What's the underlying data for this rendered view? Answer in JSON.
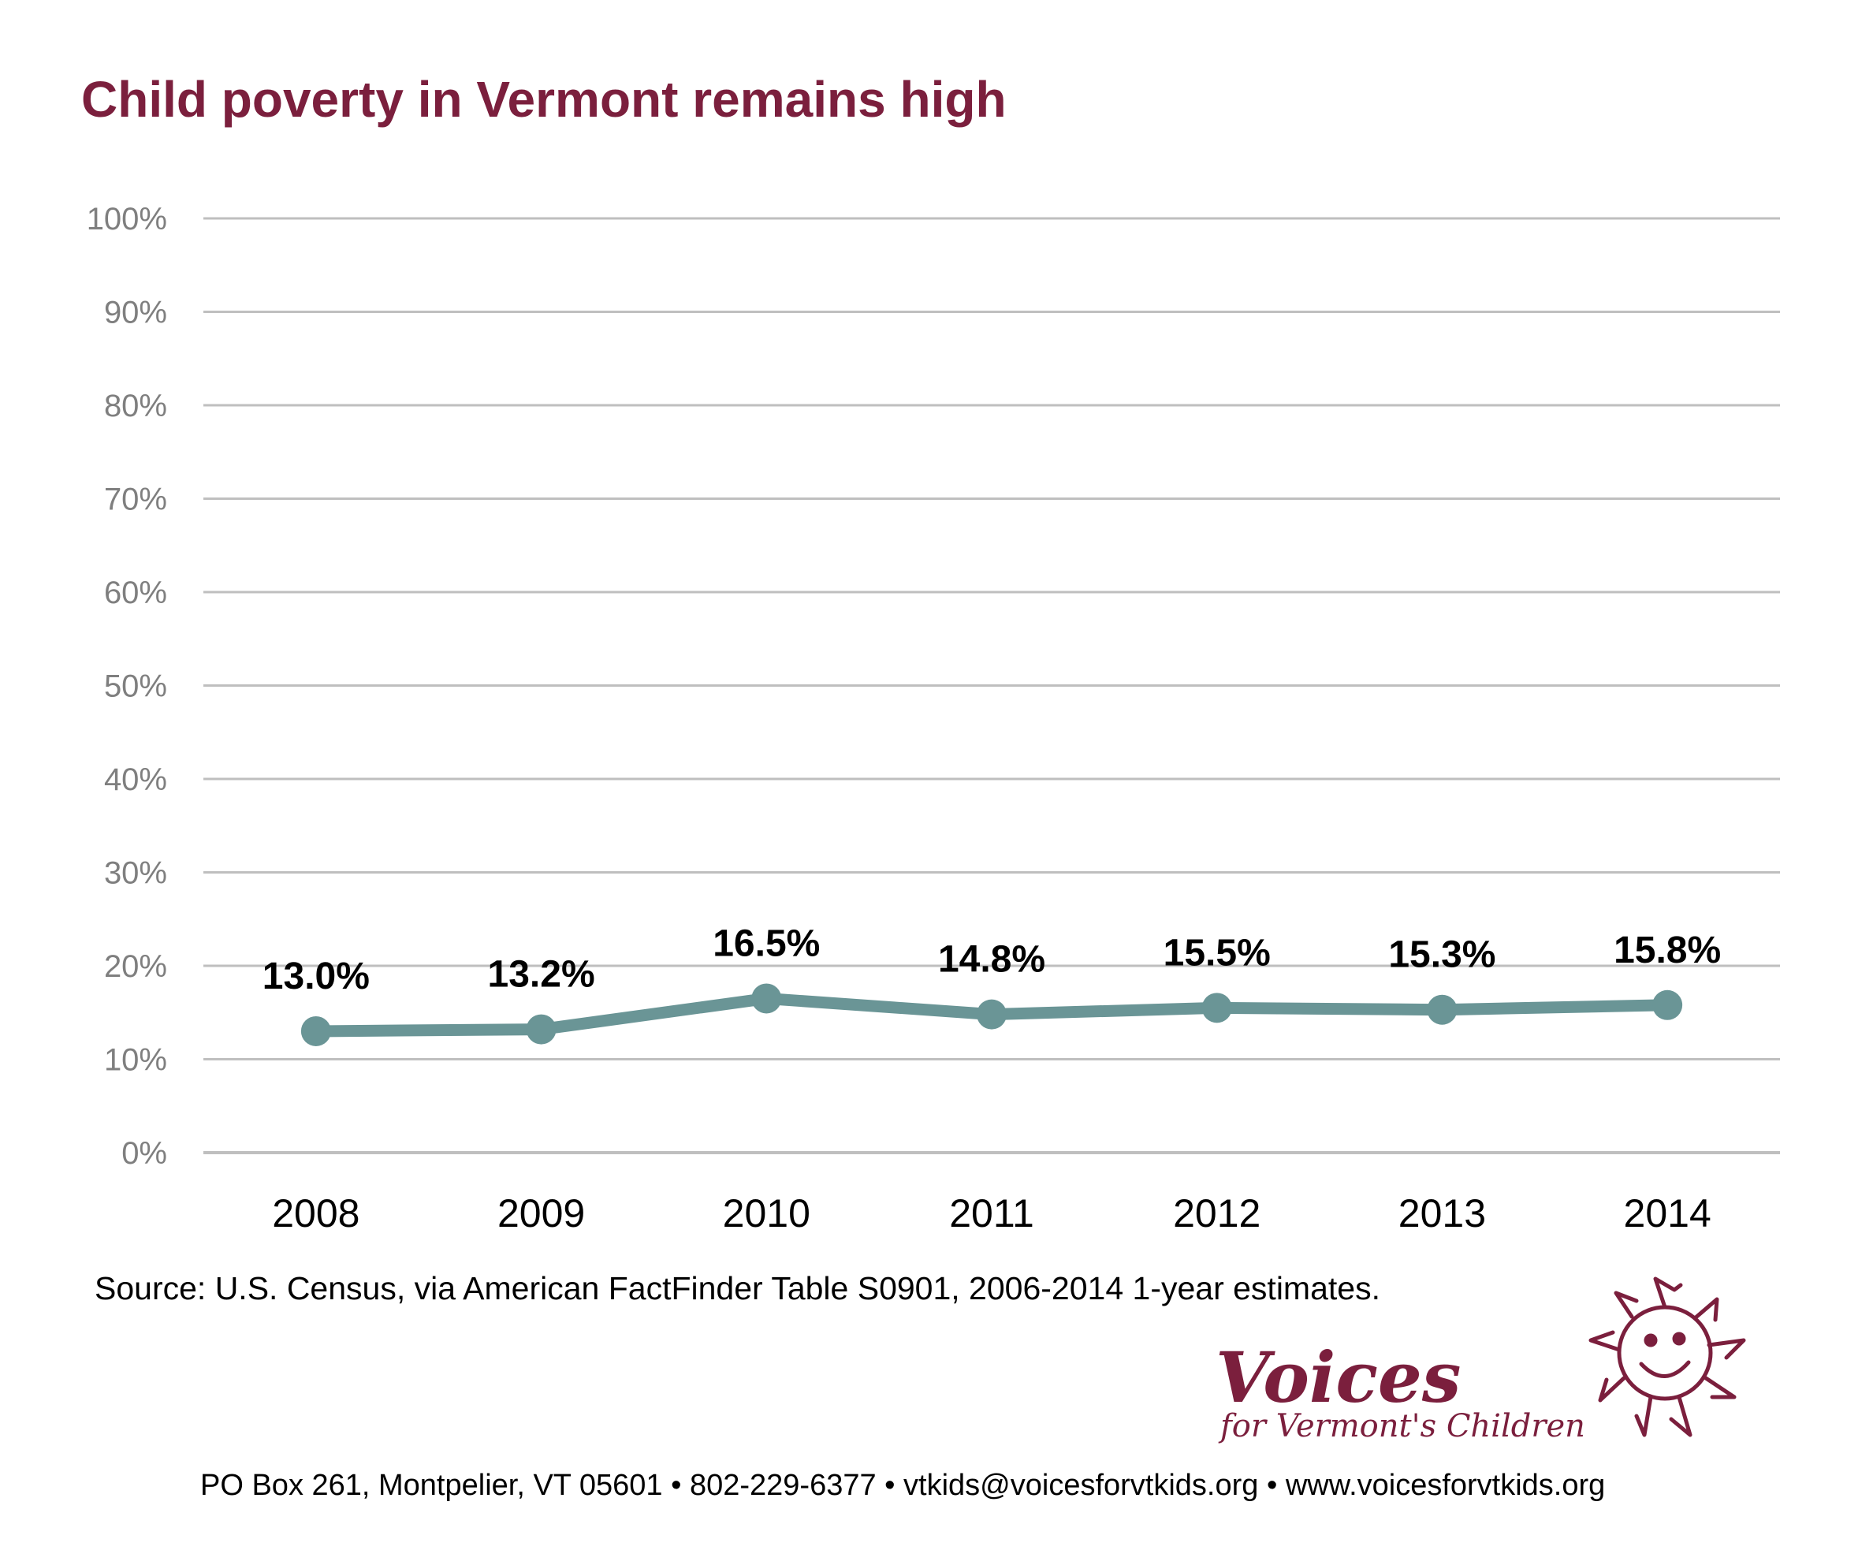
{
  "chart_data": {
    "type": "line",
    "title": "Child poverty in Vermont remains high",
    "categories": [
      "2008",
      "2009",
      "2010",
      "2011",
      "2012",
      "2013",
      "2014"
    ],
    "values": [
      13.0,
      13.2,
      16.5,
      14.8,
      15.5,
      15.3,
      15.8
    ],
    "data_labels": [
      "13.0%",
      "13.2%",
      "16.5%",
      "14.8%",
      "15.5%",
      "15.3%",
      "15.8%"
    ],
    "y_ticks": [
      0,
      10,
      20,
      30,
      40,
      50,
      60,
      70,
      80,
      90,
      100
    ],
    "y_tick_labels": [
      "0%",
      "10%",
      "20%",
      "30%",
      "40%",
      "50%",
      "60%",
      "70%",
      "80%",
      "90%",
      "100%"
    ],
    "ylim": [
      0,
      100
    ],
    "xlabel": "",
    "ylabel": "",
    "grid": true,
    "legend": "none"
  },
  "source_note": "Source: U.S. Census, via American FactFinder Table S0901, 2006-2014 1-year estimates.",
  "logo": {
    "name": "Voices",
    "tagline": "for Vermont's Children",
    "icon": "sun-face-icon"
  },
  "contact_line": "PO Box 261, Montpelier, VT 05601  •  802-229-6377 • vtkids@voicesforvtkids.org  •  www.voicesforvtkids.org",
  "colors": {
    "title": "#7b1f3d",
    "line": "#6a9596",
    "grid": "#bfbfbf",
    "axis_text": "#7f7f7f",
    "label_text": "#000000",
    "logo": "#7b1f3d"
  }
}
